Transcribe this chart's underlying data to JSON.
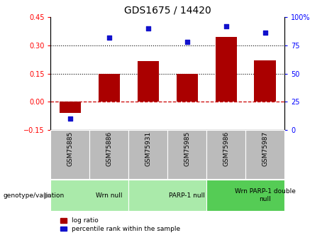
{
  "title": "GDS1675 / 14420",
  "samples": [
    "GSM75885",
    "GSM75886",
    "GSM75931",
    "GSM75985",
    "GSM75986",
    "GSM75987"
  ],
  "log_ratio": [
    -0.06,
    0.148,
    0.215,
    0.148,
    0.345,
    0.22
  ],
  "percentile_rank": [
    10,
    82,
    90,
    78,
    92,
    86
  ],
  "ylim_left": [
    -0.15,
    0.45
  ],
  "ylim_right": [
    0,
    100
  ],
  "yticks_left": [
    -0.15,
    0.0,
    0.15,
    0.3,
    0.45
  ],
  "yticks_right": [
    0,
    25,
    50,
    75,
    100
  ],
  "hlines": [
    0.15,
    0.3
  ],
  "bar_color": "#AA0000",
  "dot_color": "#1111CC",
  "zero_line_color": "#CC0000",
  "hline_color": "black",
  "groups": [
    {
      "label": "Wrn null",
      "start": 0,
      "end": 2,
      "color": "#AAEAAA"
    },
    {
      "label": "PARP-1 null",
      "start": 2,
      "end": 4,
      "color": "#AAEAAA"
    },
    {
      "label": "Wrn PARP-1 double\nnull",
      "start": 4,
      "end": 6,
      "color": "#55CC55"
    }
  ],
  "legend_red": "log ratio",
  "legend_blue": "percentile rank within the sample",
  "xlabel_area": "genotype/variation",
  "tick_bg_color": "#BBBBBB"
}
